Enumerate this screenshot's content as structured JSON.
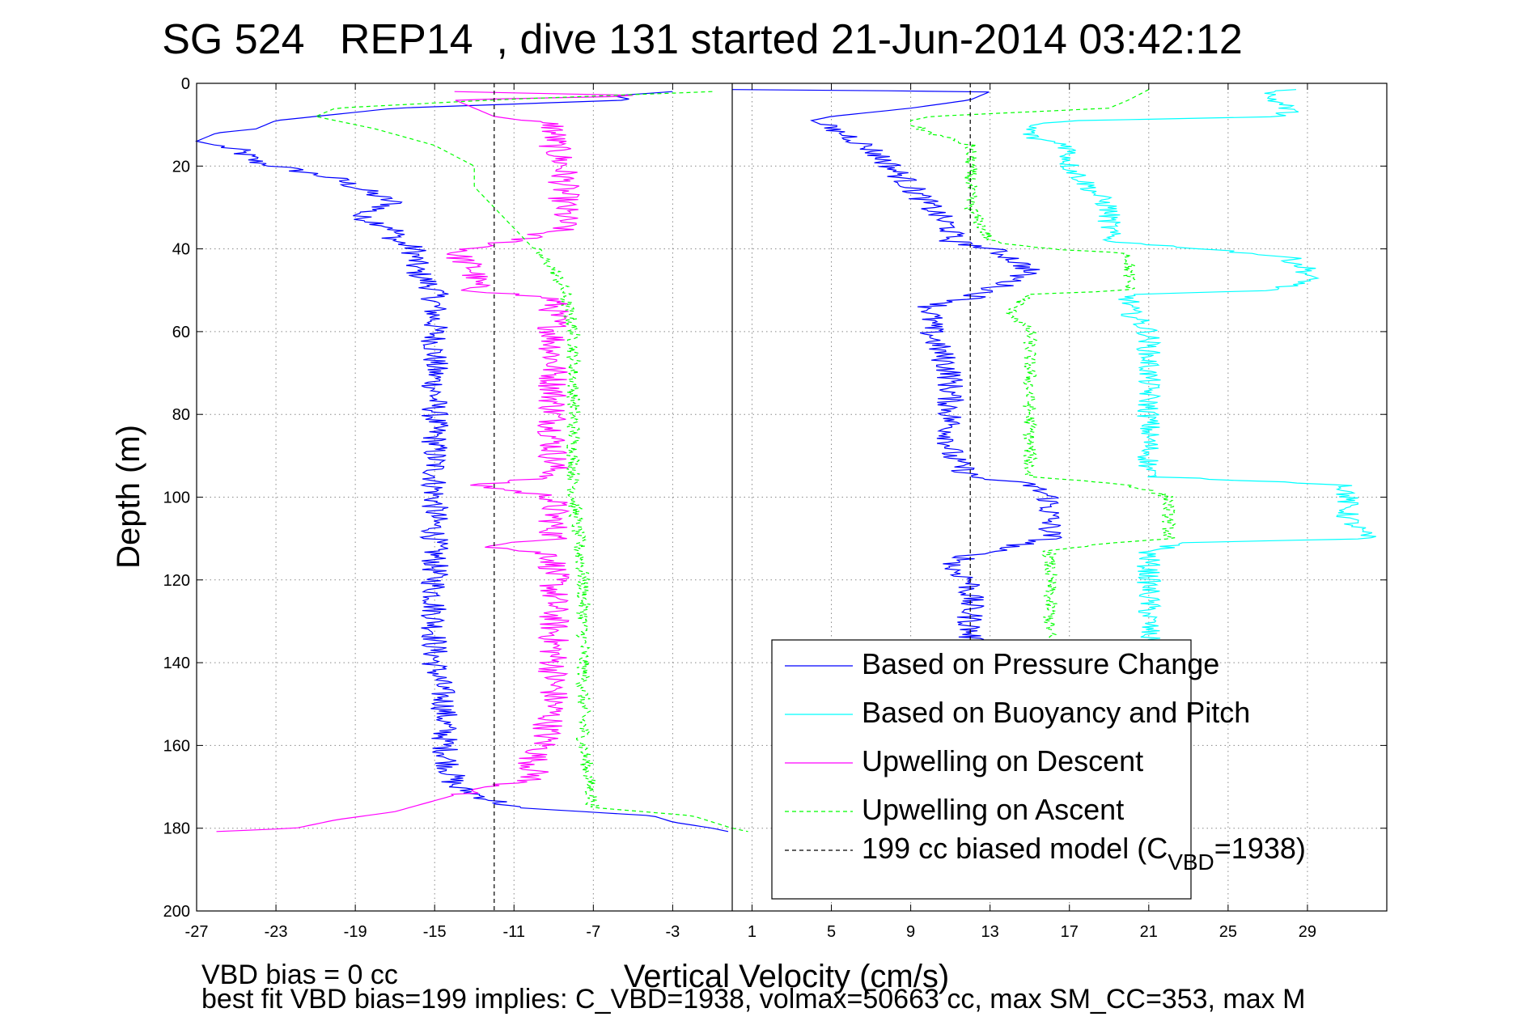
{
  "chart_data": {
    "type": "line",
    "title": "SG 524   REP14  , dive 131 started 21-Jun-2014 03:42:12",
    "xlabel": "Vertical Velocity (cm/s)",
    "ylabel": "Depth (m)",
    "xlim": [
      -27,
      33
    ],
    "ylim": [
      0,
      200
    ],
    "y_reversed": true,
    "grid": true,
    "xticks": [
      "-27",
      "-23",
      "-19",
      "-15",
      "-11",
      "-7",
      "-3",
      "1",
      "5",
      "9",
      "13",
      "17",
      "21",
      "25",
      "29"
    ],
    "xtick_values": [
      -27,
      -23,
      -19,
      -15,
      -11,
      -7,
      -3,
      1,
      5,
      9,
      13,
      17,
      21,
      25,
      29
    ],
    "yticks": [
      "0",
      "20",
      "40",
      "60",
      "80",
      "100",
      "120",
      "140",
      "160",
      "180",
      "200"
    ],
    "ytick_values": [
      0,
      20,
      40,
      60,
      80,
      100,
      120,
      140,
      160,
      180,
      200
    ],
    "legend_position": "bottom-right",
    "legend": [
      {
        "label": "Based on Pressure Change",
        "style": "solid",
        "color": "#0000ff"
      },
      {
        "label": "Based on Buoyancy and Pitch",
        "style": "solid",
        "color": "#00ffff"
      },
      {
        "label": "Upwelling on Descent",
        "style": "solid",
        "color": "#ff00ff"
      },
      {
        "label": "Upwelling on Ascent",
        "style": "dashed",
        "color": "#00ff00"
      },
      {
        "label_main": "199 cc biased model (C",
        "label_sub": "VBD",
        "label_end": "=1938)",
        "style": "dashed",
        "color": "#000000"
      }
    ],
    "footnotes": [
      "VBD bias = 0 cc",
      "best fit VBD bias=199 implies: C_VBD=1938, volmax=50663 cc, max SM_CC=353, max M"
    ],
    "series": [
      {
        "color": "#0000ff",
        "style": "solid",
        "jitter": 0.7,
        "jitter_start": 15,
        "jitter_end": 175,
        "points": [
          [
            -3,
            2
          ],
          [
            -6,
            3
          ],
          [
            -5,
            4
          ],
          [
            -17,
            6
          ],
          [
            -23,
            9
          ],
          [
            -24,
            11
          ],
          [
            -26,
            12
          ],
          [
            -27,
            14
          ],
          [
            -25,
            16
          ],
          [
            -24,
            19
          ],
          [
            -22,
            21
          ],
          [
            -20,
            23
          ],
          [
            -18,
            27
          ],
          [
            -17,
            29
          ],
          [
            -19,
            32
          ],
          [
            -17,
            35
          ],
          [
            -17,
            38
          ],
          [
            -16,
            40
          ],
          [
            -16,
            45
          ],
          [
            -15,
            50
          ],
          [
            -15,
            55
          ],
          [
            -15,
            60
          ],
          [
            -15,
            65
          ],
          [
            -15,
            70
          ],
          [
            -15,
            80
          ],
          [
            -15,
            90
          ],
          [
            -15,
            100
          ],
          [
            -15,
            110
          ],
          [
            -15,
            120
          ],
          [
            -15,
            130
          ],
          [
            -15,
            140
          ],
          [
            -14.5,
            150
          ],
          [
            -14.5,
            160
          ],
          [
            -14,
            170
          ],
          [
            -11,
            175
          ],
          [
            -4,
            177
          ],
          [
            -3,
            178.5
          ],
          [
            -1,
            180
          ],
          [
            0,
            181
          ]
        ]
      },
      {
        "color": "#ff00ff",
        "style": "solid",
        "jitter": 0.8,
        "jitter_start": 9,
        "jitter_end": 172,
        "points": [
          [
            -14,
            2
          ],
          [
            -4,
            3
          ],
          [
            -14,
            4
          ],
          [
            -13,
            6
          ],
          [
            -12,
            8
          ],
          [
            -9,
            10
          ],
          [
            -9,
            15
          ],
          [
            -8.5,
            20
          ],
          [
            -8.5,
            25
          ],
          [
            -8.5,
            30
          ],
          [
            -8.5,
            35
          ],
          [
            -11,
            38
          ],
          [
            -14,
            41
          ],
          [
            -13,
            45
          ],
          [
            -13,
            50
          ],
          [
            -9,
            52
          ],
          [
            -9,
            56
          ],
          [
            -9,
            60
          ],
          [
            -9,
            70
          ],
          [
            -9,
            80
          ],
          [
            -9,
            90
          ],
          [
            -9,
            95
          ],
          [
            -13,
            97
          ],
          [
            -9,
            100
          ],
          [
            -9,
            110
          ],
          [
            -12,
            112
          ],
          [
            -9,
            114
          ],
          [
            -9,
            118
          ],
          [
            -9,
            125
          ],
          [
            -9,
            135
          ],
          [
            -9,
            150
          ],
          [
            -9.5,
            160
          ],
          [
            -10,
            163
          ],
          [
            -10,
            168
          ],
          [
            -14,
            172
          ],
          [
            -17,
            176
          ],
          [
            -20,
            178
          ],
          [
            -22,
            180
          ],
          [
            -27,
            181
          ]
        ]
      },
      {
        "color": "#00ff00",
        "style": "dashed",
        "jitter": 0.35,
        "jitter_start": 40,
        "jitter_end": 175,
        "points": [
          [
            -1,
            2
          ],
          [
            -12,
            4
          ],
          [
            -20,
            6
          ],
          [
            -21,
            8
          ],
          [
            -18,
            11
          ],
          [
            -15,
            15
          ],
          [
            -13,
            20
          ],
          [
            -13,
            25
          ],
          [
            -12,
            30
          ],
          [
            -11,
            35
          ],
          [
            -10,
            40
          ],
          [
            -9,
            45
          ],
          [
            -8.5,
            50
          ],
          [
            -8,
            60
          ],
          [
            -8,
            70
          ],
          [
            -8,
            80
          ],
          [
            -8,
            90
          ],
          [
            -8,
            100
          ],
          [
            -7.5,
            120
          ],
          [
            -7.5,
            140
          ],
          [
            -7.5,
            160
          ],
          [
            -7,
            175
          ],
          [
            -2,
            177
          ],
          [
            0,
            180
          ],
          [
            1,
            181
          ]
        ]
      },
      {
        "color": "#0000ff",
        "style": "solid",
        "jitter": 0.7,
        "jitter_start": 10,
        "jitter_end": 135,
        "points": [
          [
            0,
            1.5
          ],
          [
            13,
            2
          ],
          [
            12,
            4
          ],
          [
            9,
            6
          ],
          [
            5,
            8
          ],
          [
            4,
            9
          ],
          [
            5,
            11
          ],
          [
            6,
            13
          ],
          [
            7,
            16
          ],
          [
            8,
            20
          ],
          [
            9,
            25
          ],
          [
            10,
            30
          ],
          [
            11,
            35
          ],
          [
            11,
            38
          ],
          [
            13,
            40
          ],
          [
            14,
            42
          ],
          [
            15,
            45
          ],
          [
            14,
            48
          ],
          [
            13,
            50
          ],
          [
            12,
            52
          ],
          [
            10,
            54
          ],
          [
            10,
            60
          ],
          [
            11,
            70
          ],
          [
            11,
            80
          ],
          [
            11,
            90
          ],
          [
            12,
            95
          ],
          [
            15,
            97
          ],
          [
            16,
            100
          ],
          [
            16,
            105
          ],
          [
            16,
            110
          ],
          [
            14,
            112
          ],
          [
            12,
            114
          ],
          [
            11,
            117
          ],
          [
            12,
            120
          ],
          [
            12,
            130
          ],
          [
            12,
            135
          ]
        ]
      },
      {
        "color": "#00ffff",
        "style": "solid",
        "jitter": 0.6,
        "jitter_start": 0,
        "jitter_end": 135,
        "points": [
          [
            28,
            1.5
          ],
          [
            27,
            3
          ],
          [
            28,
            6
          ],
          [
            28,
            8
          ],
          [
            17,
            9
          ],
          [
            15,
            10
          ],
          [
            15,
            13
          ],
          [
            17,
            15
          ],
          [
            17,
            20
          ],
          [
            18,
            25
          ],
          [
            19,
            30
          ],
          [
            19,
            35
          ],
          [
            19,
            38
          ],
          [
            21,
            39
          ],
          [
            24,
            40
          ],
          [
            28,
            42
          ],
          [
            29,
            45
          ],
          [
            29,
            48
          ],
          [
            27,
            50
          ],
          [
            20,
            51
          ],
          [
            20,
            55
          ],
          [
            21,
            60
          ],
          [
            21,
            70
          ],
          [
            21,
            80
          ],
          [
            21,
            90
          ],
          [
            21,
            95
          ],
          [
            31,
            97
          ],
          [
            31,
            100
          ],
          [
            31,
            105
          ],
          [
            32,
            110
          ],
          [
            23,
            111
          ],
          [
            21,
            113
          ],
          [
            21,
            117
          ],
          [
            21,
            120
          ],
          [
            21,
            130
          ],
          [
            21,
            135
          ]
        ]
      },
      {
        "color": "#00ff00",
        "style": "dashed",
        "jitter": 0.35,
        "jitter_start": 10,
        "jitter_end": 135,
        "points": [
          [
            21,
            1.5
          ],
          [
            20,
            4
          ],
          [
            19,
            6
          ],
          [
            10,
            8
          ],
          [
            9,
            9
          ],
          [
            9,
            10
          ],
          [
            10,
            12
          ],
          [
            12,
            15
          ],
          [
            12,
            20
          ],
          [
            12,
            30
          ],
          [
            13,
            38
          ],
          [
            14,
            39
          ],
          [
            16,
            40
          ],
          [
            20,
            41
          ],
          [
            20,
            45
          ],
          [
            20,
            50
          ],
          [
            15,
            51
          ],
          [
            14,
            55
          ],
          [
            15,
            60
          ],
          [
            15,
            70
          ],
          [
            15,
            80
          ],
          [
            15,
            90
          ],
          [
            15,
            95
          ],
          [
            20,
            97
          ],
          [
            22,
            100
          ],
          [
            22,
            105
          ],
          [
            22,
            110
          ],
          [
            19,
            111
          ],
          [
            16,
            113
          ],
          [
            16,
            117
          ],
          [
            16,
            120
          ],
          [
            16,
            130
          ],
          [
            16,
            135
          ]
        ]
      },
      {
        "color": "#000000",
        "style": "dashed",
        "points": [
          [
            -12,
            0
          ],
          [
            -12,
            200
          ]
        ]
      },
      {
        "color": "#000000",
        "style": "dashed",
        "points": [
          [
            12,
            0
          ],
          [
            12,
            135
          ]
        ]
      },
      {
        "color": "#000000",
        "style": "solid",
        "points": [
          [
            0,
            0
          ],
          [
            0,
            200
          ]
        ]
      }
    ]
  }
}
